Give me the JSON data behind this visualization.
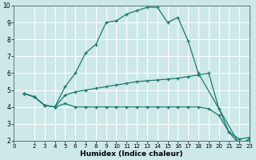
{
  "xlabel": "Humidex (Indice chaleur)",
  "xlim": [
    0,
    23
  ],
  "ylim": [
    2,
    10
  ],
  "yticks": [
    2,
    3,
    4,
    5,
    6,
    7,
    8,
    9,
    10
  ],
  "xticks": [
    0,
    2,
    3,
    4,
    5,
    6,
    7,
    8,
    9,
    10,
    11,
    12,
    13,
    14,
    15,
    16,
    17,
    18,
    19,
    20,
    21,
    22,
    23
  ],
  "background_color": "#cde8e8",
  "grid_color": "#ffffff",
  "line_color": "#1a7a6e",
  "curves": [
    {
      "x": [
        1,
        2,
        3,
        4,
        5,
        6,
        7,
        8,
        9,
        10,
        11,
        12,
        13,
        14,
        15,
        16,
        17,
        18,
        22,
        23
      ],
      "y": [
        4.8,
        4.6,
        4.1,
        4.0,
        5.2,
        6.0,
        7.2,
        7.7,
        9.0,
        9.1,
        9.5,
        9.7,
        9.9,
        9.9,
        9.0,
        9.3,
        7.9,
        6.0,
        1.8,
        2.1
      ]
    },
    {
      "x": [
        1,
        2,
        3,
        4,
        5,
        6,
        7,
        8,
        9,
        10,
        11,
        12,
        13,
        14,
        15,
        16,
        17,
        18,
        19,
        20,
        21,
        22,
        23
      ],
      "y": [
        4.8,
        4.6,
        4.1,
        4.0,
        4.7,
        4.9,
        5.0,
        5.1,
        5.2,
        5.3,
        5.4,
        5.5,
        5.55,
        5.6,
        5.65,
        5.7,
        5.8,
        5.9,
        6.0,
        3.9,
        2.5,
        2.1,
        2.2
      ]
    },
    {
      "x": [
        1,
        2,
        3,
        4,
        5,
        6,
        7,
        8,
        9,
        10,
        11,
        12,
        13,
        14,
        15,
        16,
        17,
        18,
        19,
        20,
        21,
        22,
        23
      ],
      "y": [
        4.8,
        4.6,
        4.1,
        4.0,
        4.2,
        4.0,
        4.0,
        4.0,
        4.0,
        4.0,
        4.0,
        4.0,
        4.0,
        4.0,
        4.0,
        4.0,
        4.0,
        4.0,
        3.9,
        3.5,
        2.5,
        1.8,
        2.1
      ]
    }
  ]
}
